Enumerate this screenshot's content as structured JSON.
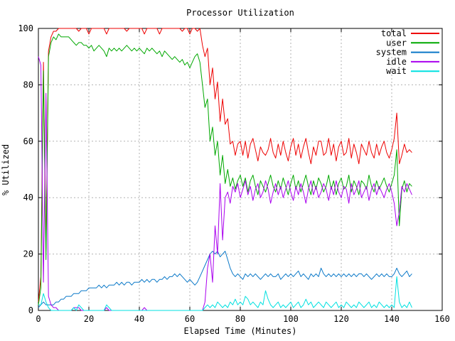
{
  "window": {
    "kind": "gnuplot-style-chart"
  },
  "title": "Processor Utilization",
  "xlabel": "Elapsed Time (Minutes)",
  "ylabel": "% Utilized",
  "plot_colors": {
    "background": "#ffffff",
    "border": "#000000",
    "grid": "#b2b2b2",
    "total": "#ee0000",
    "user": "#00a800",
    "system": "#0a78c8",
    "idle": "#aa00ee",
    "wait": "#00e0e0"
  },
  "chart_data": {
    "type": "line",
    "title": "Processor Utilization",
    "xlabel": "Elapsed Time (Minutes)",
    "ylabel": "% Utilized",
    "xlim": [
      0,
      160
    ],
    "ylim": [
      0,
      100
    ],
    "xticks": [
      0,
      20,
      40,
      60,
      80,
      100,
      120,
      140,
      160
    ],
    "yticks": [
      0,
      20,
      40,
      60,
      80,
      100
    ],
    "grid": true,
    "legend_position": "top-right-inside",
    "x_start": 0,
    "x_step": 1,
    "series": [
      {
        "name": "total",
        "color": "#ee0000",
        "values": [
          3,
          12,
          88,
          22,
          92,
          97,
          99,
          99,
          100,
          100,
          100,
          100,
          100,
          100,
          100,
          100,
          99,
          100,
          100,
          100,
          98,
          100,
          100,
          100,
          100,
          100,
          100,
          98,
          100,
          100,
          100,
          100,
          100,
          100,
          100,
          99,
          100,
          100,
          100,
          100,
          100,
          100,
          98,
          100,
          100,
          100,
          100,
          100,
          98,
          100,
          100,
          100,
          100,
          100,
          100,
          100,
          100,
          99,
          100,
          100,
          98,
          100,
          100,
          99,
          100,
          94,
          90,
          93,
          80,
          86,
          75,
          81,
          67,
          75,
          66,
          68,
          59,
          60,
          55,
          59,
          60,
          55,
          60,
          54,
          59,
          61,
          57,
          53,
          58,
          56,
          55,
          57,
          61,
          56,
          54,
          59,
          55,
          60,
          56,
          53,
          58,
          61,
          55,
          59,
          54,
          58,
          61,
          56,
          52,
          58,
          55,
          60,
          60,
          55,
          56,
          61,
          55,
          59,
          53,
          58,
          60,
          55,
          56,
          61,
          54,
          59,
          56,
          52,
          59,
          57,
          55,
          60,
          56,
          54,
          59,
          55,
          58,
          60,
          56,
          54,
          57,
          61,
          70,
          52,
          55,
          59,
          56,
          57,
          56
        ]
      },
      {
        "name": "user",
        "color": "#00a800",
        "values": [
          2,
          8,
          85,
          18,
          90,
          95,
          97,
          96,
          98,
          97,
          97,
          97,
          97,
          96,
          95,
          94,
          95,
          95,
          94,
          94,
          93,
          94,
          92,
          93,
          94,
          93,
          92,
          90,
          93,
          92,
          93,
          92,
          93,
          92,
          93,
          94,
          93,
          92,
          93,
          92,
          93,
          92,
          91,
          93,
          92,
          93,
          92,
          91,
          92,
          90,
          92,
          91,
          90,
          89,
          90,
          89,
          88,
          89,
          87,
          88,
          86,
          88,
          90,
          91,
          88,
          80,
          72,
          75,
          60,
          65,
          55,
          60,
          48,
          55,
          45,
          50,
          44,
          47,
          43,
          46,
          48,
          44,
          47,
          42,
          46,
          48,
          44,
          41,
          46,
          44,
          42,
          45,
          48,
          44,
          42,
          46,
          43,
          47,
          44,
          41,
          45,
          48,
          43,
          46,
          42,
          45,
          48,
          44,
          41,
          46,
          43,
          47,
          45,
          42,
          44,
          48,
          43,
          46,
          41,
          45,
          47,
          43,
          44,
          48,
          42,
          46,
          44,
          41,
          46,
          45,
          43,
          48,
          44,
          42,
          46,
          43,
          45,
          47,
          44,
          42,
          45,
          48,
          57,
          30,
          43,
          46,
          42,
          45,
          44
        ]
      },
      {
        "name": "system",
        "color": "#0a78c8",
        "values": [
          1,
          2,
          3,
          2,
          2,
          2,
          2,
          3,
          3,
          4,
          4,
          5,
          5,
          5,
          6,
          6,
          6,
          7,
          7,
          7,
          8,
          8,
          8,
          8,
          9,
          8,
          9,
          8,
          9,
          9,
          9,
          10,
          9,
          10,
          9,
          10,
          10,
          9,
          10,
          10,
          10,
          11,
          10,
          11,
          10,
          11,
          11,
          10,
          11,
          11,
          12,
          11,
          12,
          12,
          13,
          12,
          13,
          12,
          11,
          10,
          11,
          10,
          9,
          10,
          12,
          14,
          16,
          18,
          20,
          21,
          20,
          21,
          19,
          20,
          21,
          18,
          15,
          13,
          12,
          13,
          12,
          11,
          13,
          12,
          13,
          12,
          13,
          12,
          11,
          12,
          13,
          12,
          13,
          12,
          12,
          13,
          11,
          12,
          13,
          12,
          13,
          12,
          13,
          14,
          12,
          13,
          12,
          11,
          13,
          12,
          13,
          12,
          15,
          13,
          12,
          13,
          12,
          13,
          12,
          13,
          12,
          13,
          12,
          13,
          12,
          13,
          12,
          13,
          13,
          12,
          13,
          12,
          11,
          12,
          13,
          12,
          13,
          12,
          13,
          12,
          12,
          13,
          15,
          13,
          12,
          13,
          14,
          12,
          13
        ]
      },
      {
        "name": "idle",
        "color": "#aa00ee",
        "values": [
          90,
          87,
          10,
          77,
          5,
          2,
          1,
          1,
          0,
          0,
          0,
          0,
          0,
          0,
          1,
          1,
          1,
          0,
          0,
          0,
          0,
          0,
          0,
          0,
          0,
          0,
          0,
          1,
          0,
          0,
          0,
          0,
          0,
          0,
          0,
          0,
          0,
          0,
          0,
          0,
          0,
          0,
          1,
          0,
          0,
          0,
          0,
          0,
          0,
          0,
          0,
          0,
          0,
          0,
          0,
          0,
          0,
          0,
          0,
          0,
          0,
          0,
          0,
          0,
          0,
          0,
          3,
          15,
          20,
          10,
          30,
          20,
          45,
          25,
          40,
          42,
          38,
          44,
          42,
          45,
          40,
          43,
          46,
          41,
          44,
          39,
          43,
          45,
          40,
          42,
          46,
          43,
          38,
          42,
          45,
          41,
          44,
          40,
          43,
          46,
          42,
          39,
          44,
          41,
          45,
          42,
          38,
          43,
          46,
          41,
          44,
          40,
          42,
          45,
          43,
          39,
          44,
          41,
          46,
          42,
          40,
          44,
          43,
          38,
          45,
          41,
          43,
          46,
          40,
          42,
          44,
          39,
          43,
          45,
          41,
          44,
          42,
          40,
          43,
          45,
          42,
          38,
          30,
          35,
          44,
          42,
          45,
          43,
          41
        ]
      },
      {
        "name": "wait",
        "color": "#00e0e0",
        "values": [
          2,
          2,
          6,
          3,
          1,
          0,
          0,
          0,
          0,
          0,
          0,
          0,
          0,
          0,
          1,
          0,
          2,
          1,
          0,
          0,
          0,
          0,
          0,
          0,
          0,
          0,
          0,
          2,
          1,
          0,
          0,
          0,
          0,
          0,
          0,
          0,
          0,
          0,
          0,
          0,
          0,
          0,
          0,
          0,
          0,
          0,
          0,
          0,
          0,
          0,
          0,
          0,
          0,
          0,
          0,
          0,
          0,
          0,
          0,
          0,
          0,
          0,
          0,
          0,
          0,
          0,
          1,
          2,
          1,
          2,
          1,
          3,
          2,
          1,
          2,
          1,
          3,
          2,
          4,
          2,
          3,
          2,
          5,
          4,
          2,
          3,
          2,
          1,
          3,
          2,
          7,
          4,
          2,
          1,
          2,
          3,
          1,
          2,
          1,
          2,
          3,
          1,
          2,
          3,
          1,
          2,
          4,
          2,
          3,
          1,
          2,
          3,
          2,
          1,
          3,
          2,
          1,
          2,
          3,
          1,
          2,
          1,
          3,
          2,
          1,
          2,
          1,
          3,
          2,
          1,
          2,
          3,
          1,
          2,
          1,
          3,
          2,
          1,
          2,
          1,
          2,
          1,
          12,
          3,
          1,
          2,
          1,
          3,
          1
        ]
      }
    ]
  }
}
